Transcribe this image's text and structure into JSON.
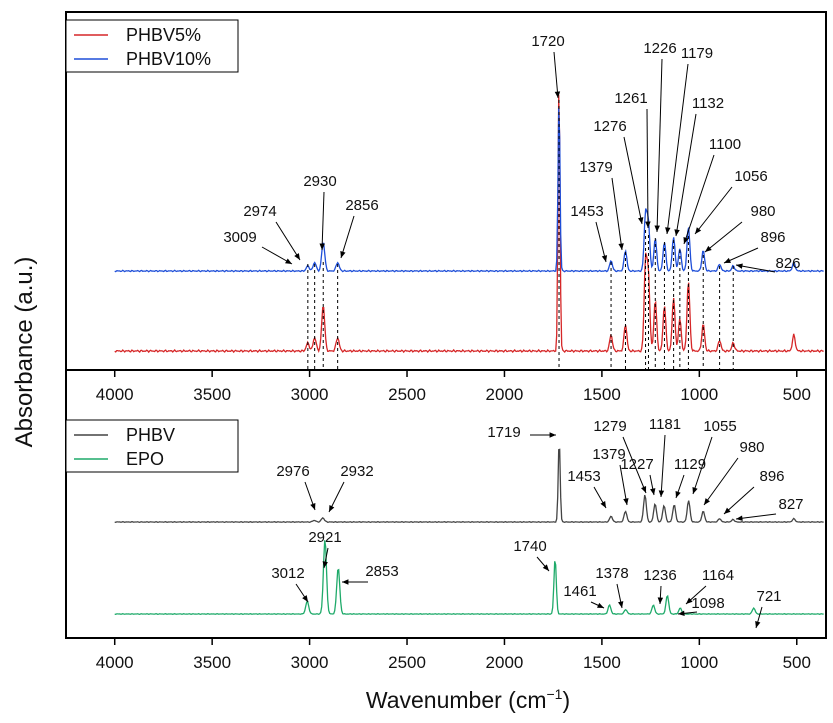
{
  "y_axis_label": "Absorbance (a.u.)",
  "x_axis_label": "Wavenumber (cm",
  "x_axis_label_sup": "−1",
  "x_axis_label_close": ")",
  "colors": {
    "phbv5": "#d62728",
    "phbv10": "#1f4fd8",
    "phbv": "#444444",
    "epo": "#1faa6a"
  },
  "chart_data": [
    {
      "type": "line",
      "panel": "top",
      "xlim": [
        4250,
        350
      ],
      "x_ticks": [
        4000,
        3500,
        3000,
        2500,
        2000,
        1500,
        1000,
        500
      ],
      "grid": false,
      "legend": "top-left",
      "series": [
        {
          "name": "PHBV5%",
          "color": "#d62728",
          "peaks": [
            [
              3009,
              0.03
            ],
            [
              2974,
              0.05
            ],
            [
              2930,
              0.17
            ],
            [
              2856,
              0.05
            ],
            [
              1720,
              1.0
            ],
            [
              1453,
              0.06
            ],
            [
              1379,
              0.1
            ],
            [
              1276,
              0.33
            ],
            [
              1261,
              0.27
            ],
            [
              1226,
              0.19
            ],
            [
              1179,
              0.17
            ],
            [
              1132,
              0.2
            ],
            [
              1100,
              0.12
            ],
            [
              1056,
              0.26
            ],
            [
              980,
              0.1
            ],
            [
              896,
              0.04
            ],
            [
              826,
              0.03
            ],
            [
              515,
              0.06
            ]
          ]
        },
        {
          "name": "PHBV10%",
          "color": "#1f4fd8",
          "peaks": [
            [
              3009,
              0.03
            ],
            [
              2974,
              0.05
            ],
            [
              2930,
              0.17
            ],
            [
              2856,
              0.05
            ],
            [
              1720,
              1.0
            ],
            [
              1453,
              0.06
            ],
            [
              1379,
              0.12
            ],
            [
              1276,
              0.33
            ],
            [
              1261,
              0.27
            ],
            [
              1226,
              0.19
            ],
            [
              1179,
              0.17
            ],
            [
              1132,
              0.2
            ],
            [
              1100,
              0.13
            ],
            [
              1056,
              0.26
            ],
            [
              980,
              0.12
            ],
            [
              896,
              0.04
            ],
            [
              826,
              0.03
            ],
            [
              515,
              0.05
            ]
          ]
        }
      ],
      "annotations": [
        "3009",
        "2974",
        "2930",
        "2856",
        "1720",
        "1453",
        "1379",
        "1276",
        "1261",
        "1226",
        "1179",
        "1132",
        "1100",
        "1056",
        "980",
        "896",
        "826"
      ]
    },
    {
      "type": "line",
      "panel": "bottom",
      "xlim": [
        4250,
        350
      ],
      "x_ticks": [
        4000,
        3500,
        3000,
        2500,
        2000,
        1500,
        1000,
        500
      ],
      "grid": false,
      "legend": "top-left",
      "series": [
        {
          "name": "PHBV",
          "color": "#444444",
          "peaks": [
            [
              2976,
              0.02
            ],
            [
              2932,
              0.05
            ],
            [
              1719,
              1.0
            ],
            [
              1453,
              0.07
            ],
            [
              1379,
              0.13
            ],
            [
              1279,
              0.33
            ],
            [
              1227,
              0.22
            ],
            [
              1181,
              0.2
            ],
            [
              1129,
              0.21
            ],
            [
              1055,
              0.26
            ],
            [
              980,
              0.13
            ],
            [
              896,
              0.04
            ],
            [
              827,
              0.03
            ],
            [
              515,
              0.04
            ]
          ]
        },
        {
          "name": "EPO",
          "color": "#1faa6a",
          "peaks": [
            [
              3012,
              0.17
            ],
            [
              2921,
              1.0
            ],
            [
              2853,
              0.62
            ],
            [
              1740,
              0.75
            ],
            [
              1461,
              0.12
            ],
            [
              1378,
              0.06
            ],
            [
              1236,
              0.12
            ],
            [
              1164,
              0.25
            ],
            [
              1098,
              0.08
            ],
            [
              721,
              0.08
            ]
          ]
        }
      ],
      "annotations": [
        "1719",
        "1279",
        "1379",
        "1227",
        "1181",
        "1129",
        "1055",
        "980",
        "896",
        "827",
        "1453",
        "2976",
        "2932",
        "3012",
        "2921",
        "2853",
        "1740",
        "1378",
        "1236",
        "1164",
        "1461",
        "1098",
        "721"
      ]
    }
  ]
}
